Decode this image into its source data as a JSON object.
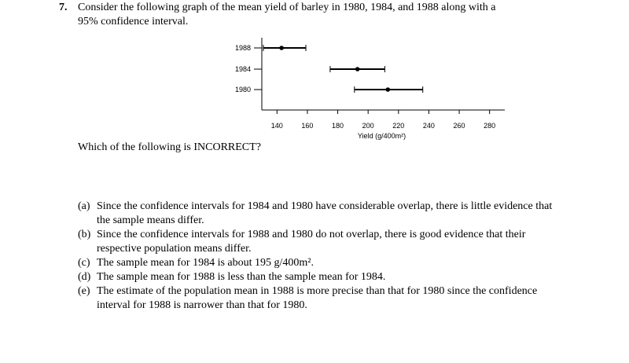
{
  "question": {
    "number": "7.",
    "text_line1": "Consider the following graph of the mean yield of barley in 1980, 1984, and 1988 along with a",
    "text_line2": "95% confidence interval."
  },
  "prompt": "Which of the following is INCORRECT?",
  "choices": [
    {
      "label": "(a)",
      "text": "Since the confidence intervals for 1984 and 1980 have considerable overlap, there is little evidence that the sample means differ."
    },
    {
      "label": "(b)",
      "text": "Since the confidence intervals for 1988 and 1980 do not overlap, there is good evidence that their respective population means differ."
    },
    {
      "label": "(c)",
      "text": "The sample mean for 1984 is about 195 g/400m²."
    },
    {
      "label": "(d)",
      "text": "The sample mean for 1988 is less than the sample mean for 1984."
    },
    {
      "label": "(e)",
      "text": "The estimate of the population mean in 1988 is more precise than that for 1980 since the confidence interval for 1988 is narrower than that for 1980."
    }
  ],
  "chart_data": {
    "type": "scatter",
    "xlabel": "Yield (g/400m²)",
    "xlim": [
      130,
      290
    ],
    "xticks": [
      140,
      160,
      180,
      200,
      220,
      240,
      260,
      280
    ],
    "categories": [
      "1988",
      "1984",
      "1980"
    ],
    "series": [
      {
        "category": "1988",
        "mean": 143,
        "lower": 131,
        "upper": 159
      },
      {
        "category": "1984",
        "mean": 193,
        "lower": 175,
        "upper": 211
      },
      {
        "category": "1980",
        "mean": 213,
        "lower": 191,
        "upper": 236
      }
    ],
    "grid": false
  }
}
